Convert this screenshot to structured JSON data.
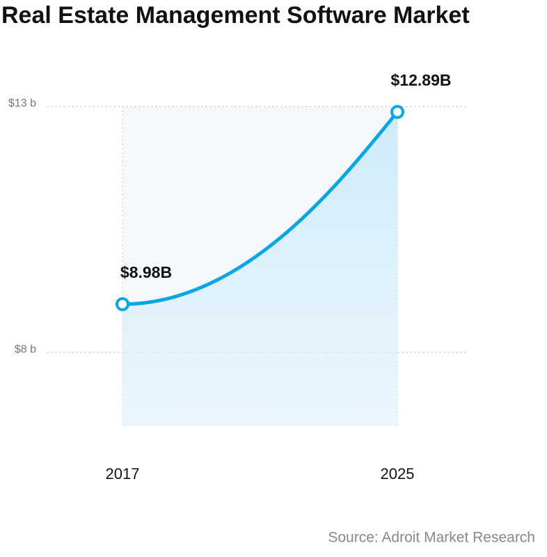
{
  "chart_data": {
    "type": "line",
    "title": "Real Estate Management Software Market",
    "categories": [
      "2017",
      "2025"
    ],
    "values": [
      8.98,
      12.89
    ],
    "value_labels": [
      "$8.98B",
      "$12.89B"
    ],
    "color": "#0aa6e4",
    "ylim": [
      6.5,
      13
    ],
    "yticks": [
      {
        "value": 8,
        "label": "$8 b"
      },
      {
        "value": 13,
        "label": "$13 b"
      }
    ],
    "grid": true,
    "source": "Source: Adroit Market Research"
  }
}
